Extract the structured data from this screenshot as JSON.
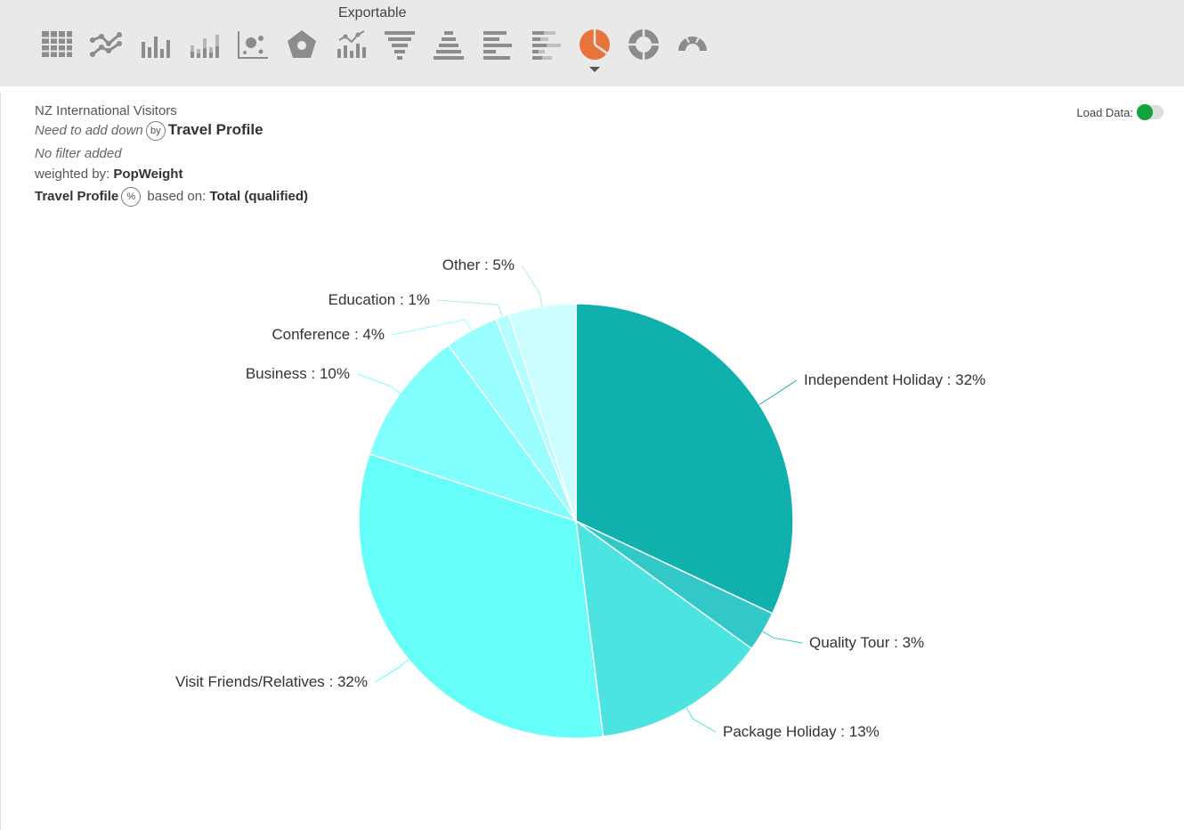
{
  "toolbar": {
    "exportable_label": "Exportable",
    "icons": [
      "table-icon",
      "line-chart-icon",
      "bar-chart-icon",
      "stacked-bar-chart-icon",
      "scatter-chart-icon",
      "radar-chart-icon",
      "combo-chart-icon",
      "funnel-chart-icon",
      "pyramid-chart-icon",
      "horizontal-bar-chart-icon",
      "horizontal-stacked-bar-icon",
      "pie-chart-icon",
      "donut-chart-icon",
      "gauge-chart-icon"
    ],
    "active_icon": "pie-chart-icon",
    "icon_color": "#8c8c8c",
    "active_color": "#e8743b"
  },
  "header": {
    "dataset_name": "NZ International Visitors",
    "need_down": "Need to add down",
    "by_badge": "by",
    "by_variable": "Travel Profile",
    "filter_text": "No filter added",
    "weighted_prefix": "weighted by:",
    "weighted_value": "PopWeight",
    "percent_variable": "Travel Profile",
    "percent_badge": "%",
    "based_prefix": "based on:",
    "based_value": "Total (qualified)"
  },
  "load_data": {
    "label": "Load Data:",
    "enabled": true,
    "color": "#12a33a"
  },
  "chart_data": {
    "type": "pie",
    "title": "",
    "label_format": "{category} : {value}%",
    "categories": [
      "Independent Holiday",
      "Quality Tour",
      "Package Holiday",
      "Visit Friends/Relatives",
      "Business",
      "Conference",
      "Education",
      "Other"
    ],
    "values": [
      32,
      3,
      13,
      32,
      10,
      4,
      1,
      5
    ],
    "display_labels": [
      "Independent Holiday : 32%",
      "Quality Tour : 3%",
      "Package Holiday : 13%",
      "Visit Friends/Relatives : 32%",
      "Business : 10%",
      "Conference : 4%",
      "Education : 1%",
      "Other : 5%"
    ],
    "colors": [
      "#10b0ac",
      "#33c8c8",
      "#4ce4e0",
      "#66fef9",
      "#80fffe",
      "#9afefe",
      "#b3ffff",
      "#ccfeff"
    ],
    "start_angle_deg": 0,
    "direction": "clockwise",
    "legend": "none"
  }
}
